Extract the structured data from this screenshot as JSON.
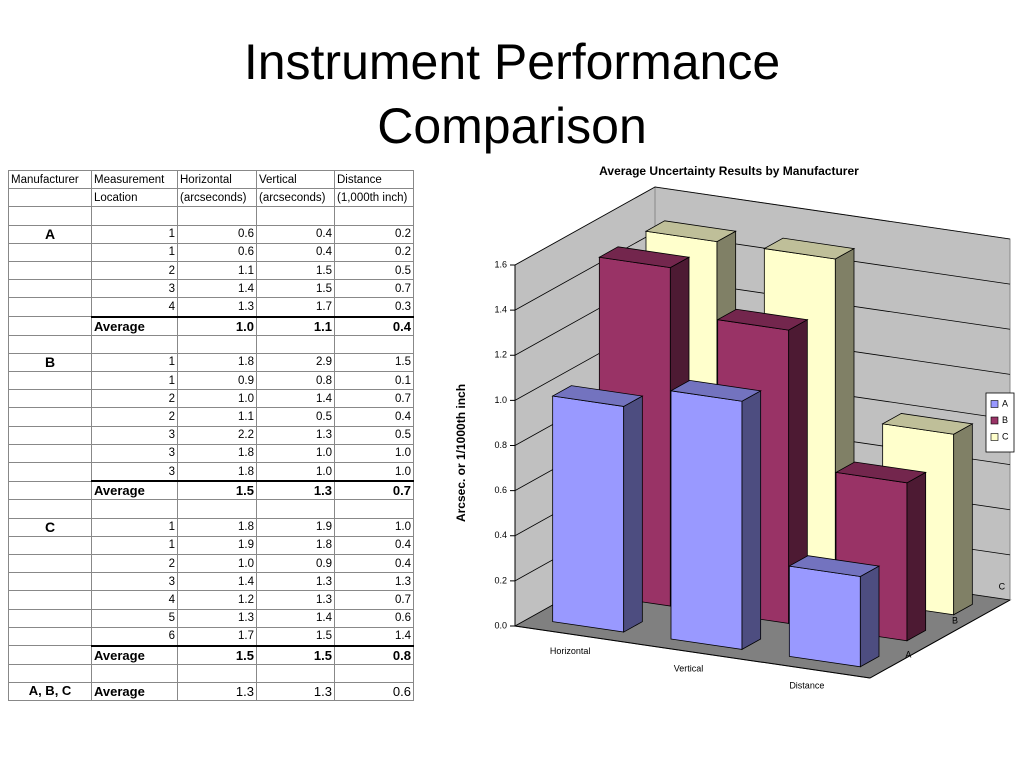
{
  "title": "Instrument Performance Comparison",
  "table": {
    "header": [
      [
        "Manufacturer",
        "Measurement",
        "Horizontal",
        "Vertical",
        "Distance"
      ],
      [
        null,
        "Location",
        "(arcseconds)",
        "(arcseconds)",
        "(1,000th inch)"
      ]
    ],
    "rows": [
      {
        "cells": [
          null,
          null,
          null,
          null,
          null
        ]
      },
      {
        "cells": [
          "A",
          "1",
          "0.6",
          "0.4",
          "0.2"
        ]
      },
      {
        "cells": [
          null,
          "1",
          "0.6",
          "0.4",
          "0.2"
        ]
      },
      {
        "cells": [
          null,
          "2",
          "1.1",
          "1.5",
          "0.5"
        ]
      },
      {
        "cells": [
          null,
          "3",
          "1.4",
          "1.5",
          "0.7"
        ]
      },
      {
        "cells": [
          null,
          "4",
          "1.3",
          "1.7",
          "0.3"
        ]
      },
      {
        "cells": [
          null,
          "Average",
          "1.0",
          "1.1",
          "0.4"
        ],
        "style": "average"
      },
      {
        "cells": [
          null,
          null,
          null,
          null,
          null
        ]
      },
      {
        "cells": [
          "B",
          "1",
          "1.8",
          "2.9",
          "1.5"
        ]
      },
      {
        "cells": [
          null,
          "1",
          "0.9",
          "0.8",
          "0.1"
        ]
      },
      {
        "cells": [
          null,
          "2",
          "1.0",
          "1.4",
          "0.7"
        ]
      },
      {
        "cells": [
          null,
          "2",
          "1.1",
          "0.5",
          "0.4"
        ]
      },
      {
        "cells": [
          null,
          "3",
          "2.2",
          "1.3",
          "0.5"
        ]
      },
      {
        "cells": [
          null,
          "3",
          "1.8",
          "1.0",
          "1.0"
        ]
      },
      {
        "cells": [
          null,
          "3",
          "1.8",
          "1.0",
          "1.0"
        ]
      },
      {
        "cells": [
          null,
          "Average",
          "1.5",
          "1.3",
          "0.7"
        ],
        "style": "average"
      },
      {
        "cells": [
          null,
          null,
          null,
          null,
          null
        ]
      },
      {
        "cells": [
          "C",
          "1",
          "1.8",
          "1.9",
          "1.0"
        ]
      },
      {
        "cells": [
          null,
          "1",
          "1.9",
          "1.8",
          "0.4"
        ]
      },
      {
        "cells": [
          null,
          "2",
          "1.0",
          "0.9",
          "0.4"
        ]
      },
      {
        "cells": [
          null,
          "3",
          "1.4",
          "1.3",
          "1.3"
        ]
      },
      {
        "cells": [
          null,
          "4",
          "1.2",
          "1.3",
          "0.7"
        ]
      },
      {
        "cells": [
          null,
          "5",
          "1.3",
          "1.4",
          "0.6"
        ]
      },
      {
        "cells": [
          null,
          "6",
          "1.7",
          "1.5",
          "1.4"
        ]
      },
      {
        "cells": [
          null,
          "Average",
          "1.5",
          "1.5",
          "0.8"
        ],
        "style": "average"
      },
      {
        "cells": [
          null,
          null,
          null,
          null,
          null
        ]
      },
      {
        "cells": [
          "A, B, C",
          "Average",
          "1.3",
          "1.3",
          "0.6"
        ],
        "style": "overall"
      }
    ]
  },
  "chart_data": {
    "type": "bar3d",
    "title": "Average Uncertainty Results by Manufacturer",
    "y_label": "Arcsec. or 1/1000th inch",
    "categories": [
      "Horizontal",
      "Vertical",
      "Distance"
    ],
    "depth_labels": [
      "A",
      "B",
      "C"
    ],
    "series": [
      {
        "name": "A",
        "color": "#9999ff",
        "values": [
          1.0,
          1.1,
          0.4
        ]
      },
      {
        "name": "B",
        "color": "#993366",
        "values": [
          1.5,
          1.3,
          0.7
        ]
      },
      {
        "name": "C",
        "color": "#ffffcc",
        "values": [
          1.5,
          1.5,
          0.8
        ]
      }
    ],
    "ylim": [
      0,
      1.6
    ],
    "yticks": [
      {
        "value": 0,
        "label": "0.0"
      },
      0.2,
      0.4,
      0.6,
      0.8,
      {
        "value": 1,
        "label": "1.0"
      },
      1.2,
      1.4,
      1.6
    ],
    "grid": true,
    "legend": "right"
  }
}
